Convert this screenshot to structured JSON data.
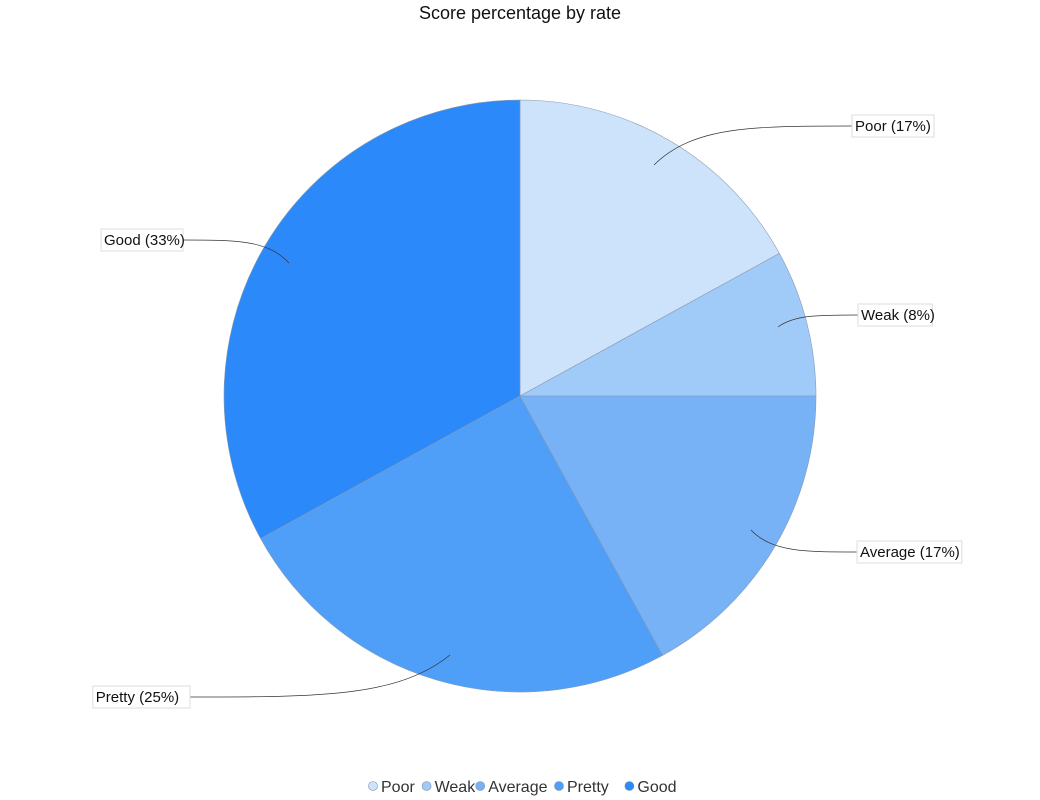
{
  "chart_data": {
    "type": "pie",
    "title": "Score percentage by rate",
    "slices": [
      {
        "label": "Poor",
        "value": 17,
        "display": "Poor (17%)",
        "color": "#cde3fb"
      },
      {
        "label": "Weak",
        "value": 8,
        "display": "Weak (8%)",
        "color": "#a0caf8"
      },
      {
        "label": "Average",
        "value": 17,
        "display": "Average (17%)",
        "color": "#77b2f6"
      },
      {
        "label": "Pretty",
        "value": 25,
        "display": "Pretty (25%)",
        "color": "#4f9ef8"
      },
      {
        "label": "Good",
        "value": 33,
        "display": "Good (33%)",
        "color": "#2b89f9"
      }
    ],
    "legend": {
      "position": "bottom",
      "items": [
        "Poor",
        "Weak",
        "Average",
        "Pretty",
        "Good"
      ]
    }
  }
}
